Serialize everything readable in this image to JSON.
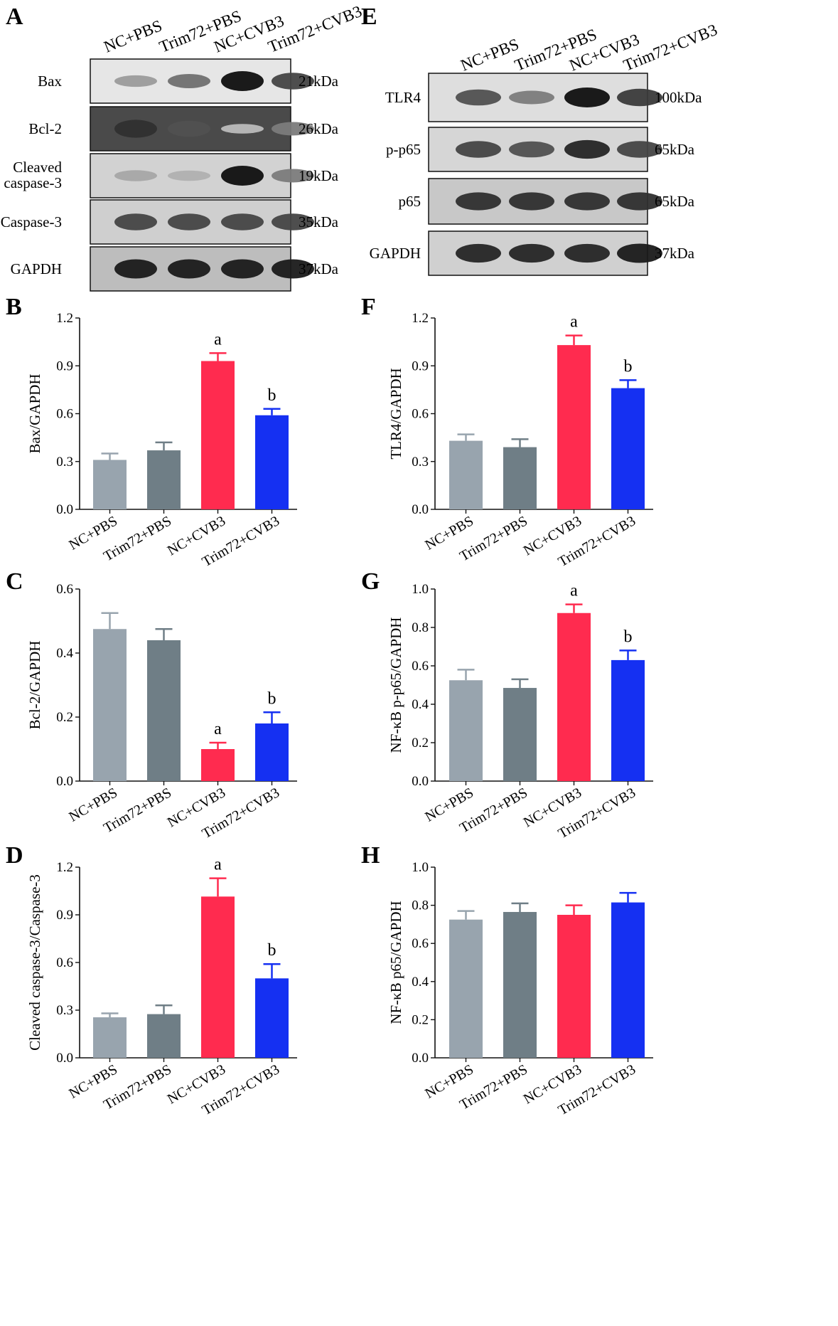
{
  "categories": [
    "NC+PBS",
    "Trim72+PBS",
    "NC+CVB3",
    "Trim72+CVB3"
  ],
  "colors": {
    "NC+PBS": "#98a4ae",
    "Trim72+PBS": "#6f7e86",
    "NC+CVB3": "#ff2b4f",
    "Trim72+CVB3": "#1530f2",
    "axis": "#111111"
  },
  "blots": [
    {
      "letter": "A",
      "lanes": [
        "NC+PBS",
        "Trim72+PBS",
        "NC+CVB3",
        "Trim72+CVB3"
      ],
      "rows": [
        {
          "label": "Bax",
          "kda": "21kDa",
          "intensity": [
            0.35,
            0.55,
            1.0,
            0.75
          ],
          "bg": "#e6e6e6"
        },
        {
          "label": "Bcl-2",
          "kda": "26kDa",
          "intensity": [
            0.85,
            0.7,
            0.2,
            0.5
          ],
          "bg": "#4a4a4a"
        },
        {
          "label": "Cleaved caspase-3",
          "kda": "19kDa",
          "intensity": [
            0.3,
            0.25,
            1.0,
            0.5
          ],
          "bg": "#d2d2d2"
        },
        {
          "label": "Caspase-3",
          "kda": "35kDa",
          "intensity": [
            0.75,
            0.75,
            0.75,
            0.75
          ],
          "bg": "#cfcfcf"
        },
        {
          "label": "GAPDH",
          "kda": "37kDa",
          "intensity": [
            0.95,
            0.95,
            0.95,
            0.95
          ],
          "bg": "#bdbdbd"
        }
      ]
    },
    {
      "letter": "E",
      "lanes": [
        "NC+PBS",
        "Trim72+PBS",
        "NC+CVB3",
        "Trim72+CVB3"
      ],
      "rows": [
        {
          "label": "TLR4",
          "kda": "100kDa",
          "intensity": [
            0.7,
            0.5,
            1.0,
            0.8
          ],
          "bg": "#dedede"
        },
        {
          "label": "p-p65",
          "kda": "65kDa",
          "intensity": [
            0.75,
            0.7,
            0.9,
            0.75
          ],
          "bg": "#d6d6d6"
        },
        {
          "label": "p65",
          "kda": "65kDa",
          "intensity": [
            0.85,
            0.85,
            0.85,
            0.85
          ],
          "bg": "#c8c8c8"
        },
        {
          "label": "GAPDH",
          "kda": "37kDa",
          "intensity": [
            0.9,
            0.9,
            0.9,
            0.95
          ],
          "bg": "#d0d0d0"
        }
      ]
    }
  ],
  "chart_data": [
    {
      "letter": "B",
      "type": "bar",
      "ylabel": "Bax/GAPDH",
      "ylim": [
        0,
        1.2
      ],
      "yticks": [
        "0.0",
        "0.3",
        "0.6",
        "0.9",
        "1.2"
      ],
      "categories": [
        "NC+PBS",
        "Trim72+PBS",
        "NC+CVB3",
        "Trim72+CVB3"
      ],
      "values": [
        0.31,
        0.37,
        0.93,
        0.59
      ],
      "errors": [
        0.04,
        0.05,
        0.05,
        0.04
      ],
      "annotations": [
        "",
        "",
        "a",
        "b"
      ]
    },
    {
      "letter": "F",
      "type": "bar",
      "ylabel": "TLR4/GAPDH",
      "ylim": [
        0,
        1.2
      ],
      "yticks": [
        "0.0",
        "0.3",
        "0.6",
        "0.9",
        "1.2"
      ],
      "categories": [
        "NC+PBS",
        "Trim72+PBS",
        "NC+CVB3",
        "Trim72+CVB3"
      ],
      "values": [
        0.43,
        0.39,
        1.03,
        0.76
      ],
      "errors": [
        0.04,
        0.05,
        0.06,
        0.05
      ],
      "annotations": [
        "",
        "",
        "a",
        "b"
      ]
    },
    {
      "letter": "C",
      "type": "bar",
      "ylabel": "Bcl-2/GAPDH",
      "ylim": [
        0,
        0.6
      ],
      "yticks": [
        "0.0",
        "0.2",
        "0.4",
        "0.6"
      ],
      "categories": [
        "NC+PBS",
        "Trim72+PBS",
        "NC+CVB3",
        "Trim72+CVB3"
      ],
      "values": [
        0.475,
        0.44,
        0.1,
        0.18
      ],
      "errors": [
        0.05,
        0.035,
        0.02,
        0.035
      ],
      "annotations": [
        "",
        "",
        "a",
        "b"
      ]
    },
    {
      "letter": "G",
      "type": "bar",
      "ylabel": "NF-κB p-p65/GAPDH",
      "ylim": [
        0,
        1.0
      ],
      "yticks": [
        "0.0",
        "0.2",
        "0.4",
        "0.6",
        "0.8",
        "1.0"
      ],
      "categories": [
        "NC+PBS",
        "Trim72+PBS",
        "NC+CVB3",
        "Trim72+CVB3"
      ],
      "values": [
        0.525,
        0.485,
        0.875,
        0.63
      ],
      "errors": [
        0.055,
        0.045,
        0.045,
        0.05
      ],
      "annotations": [
        "",
        "",
        "a",
        "b"
      ]
    },
    {
      "letter": "D",
      "type": "bar",
      "ylabel": "Cleaved caspase-3/Caspase-3",
      "ylim": [
        0,
        1.2
      ],
      "yticks": [
        "0.0",
        "0.3",
        "0.6",
        "0.9",
        "1.2"
      ],
      "categories": [
        "NC+PBS",
        "Trim72+PBS",
        "NC+CVB3",
        "Trim72+CVB3"
      ],
      "values": [
        0.255,
        0.275,
        1.015,
        0.5
      ],
      "errors": [
        0.025,
        0.055,
        0.115,
        0.09
      ],
      "annotations": [
        "",
        "",
        "a",
        "b"
      ]
    },
    {
      "letter": "H",
      "type": "bar",
      "ylabel": "NF-κB p65/GAPDH",
      "ylim": [
        0,
        1.0
      ],
      "yticks": [
        "0.0",
        "0.2",
        "0.4",
        "0.6",
        "0.8",
        "1.0"
      ],
      "categories": [
        "NC+PBS",
        "Trim72+PBS",
        "NC+CVB3",
        "Trim72+CVB3"
      ],
      "values": [
        0.725,
        0.765,
        0.75,
        0.815
      ],
      "errors": [
        0.045,
        0.045,
        0.05,
        0.05
      ],
      "annotations": [
        "",
        "",
        "",
        ""
      ]
    }
  ]
}
